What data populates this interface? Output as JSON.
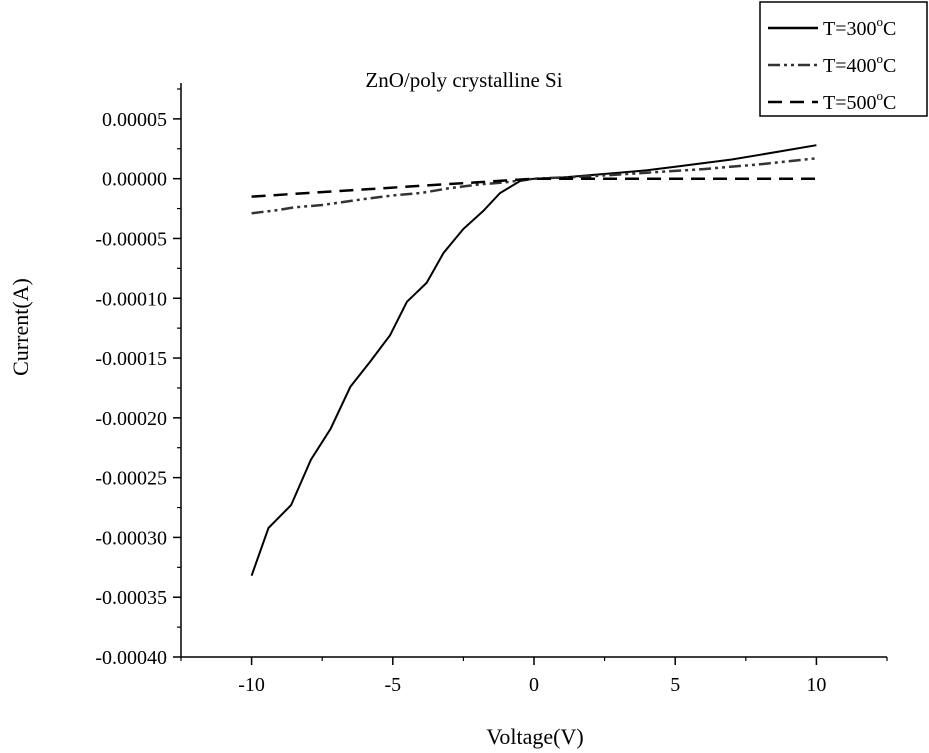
{
  "chart_data": {
    "type": "line",
    "title": "ZnO/poly crystalline Si",
    "xlabel": "Voltage(V)",
    "ylabel": "Current(A)",
    "xlim": [
      -12.5,
      12.5
    ],
    "ylim": [
      -0.0004,
      8e-05
    ],
    "x_ticks": [
      -10,
      -5,
      0,
      5,
      10
    ],
    "x_tick_labels": [
      "-10",
      "-5",
      "0",
      "5",
      "10"
    ],
    "y_ticks": [
      5e-05,
      0,
      -5e-05,
      -0.0001,
      -0.00015,
      -0.0002,
      -0.00025,
      -0.0003,
      -0.00035,
      -0.0004
    ],
    "y_tick_labels": [
      "0.00005",
      "0.00000",
      "-0.00005",
      "-0.00010",
      "-0.00015",
      "-0.00020",
      "-0.00025",
      "-0.00030",
      "-0.00035",
      "-0.00040"
    ],
    "grid": false,
    "legend_position": "top-right",
    "series": [
      {
        "name": "T=300",
        "name_sup": "o",
        "name_suffix": "C",
        "line_style": "solid",
        "color": "#000000",
        "x": [
          -10,
          -9.4,
          -8.6,
          -7.9,
          -7.2,
          -6.5,
          -5.8,
          -5.1,
          -4.5,
          -3.8,
          -3.2,
          -2.5,
          -1.8,
          -1.2,
          -0.5,
          0,
          1,
          2,
          3,
          4,
          5,
          6,
          7,
          8,
          9,
          10
        ],
        "y": [
          -0.000332,
          -0.000292,
          -0.000273,
          -0.000235,
          -0.000209,
          -0.000174,
          -0.000153,
          -0.000131,
          -0.000103,
          -8.7e-05,
          -6.2e-05,
          -4.2e-05,
          -2.7e-05,
          -1.2e-05,
          -2e-06,
          0,
          1e-06,
          3e-06,
          5e-06,
          7e-06,
          1e-05,
          1.3e-05,
          1.6e-05,
          2e-05,
          2.4e-05,
          2.8e-05
        ]
      },
      {
        "name": "T=400",
        "name_sup": "o",
        "name_suffix": "C",
        "line_style": "dash-dot-dot",
        "color": "#333333",
        "x": [
          -10,
          -9,
          -8.5,
          -7.5,
          -6,
          -5,
          -4,
          -3,
          -2,
          -1,
          0,
          2,
          4,
          6,
          8,
          10
        ],
        "y": [
          -2.9e-05,
          -2.6e-05,
          -2.4e-05,
          -2.2e-05,
          -1.7e-05,
          -1.4e-05,
          -1.2e-05,
          -8e-06,
          -5e-06,
          -3e-06,
          0,
          2e-06,
          5e-06,
          8e-06,
          1.2e-05,
          1.7e-05
        ]
      },
      {
        "name": "T=500",
        "name_sup": "o",
        "name_suffix": "C",
        "line_style": "dashed",
        "color": "#000000",
        "x": [
          -10,
          -8,
          -6,
          -4,
          -2,
          0,
          2,
          4,
          6,
          8,
          10
        ],
        "y": [
          -1.5e-05,
          -1.2e-05,
          -9e-06,
          -6e-06,
          -3e-06,
          0,
          0,
          0,
          0,
          0,
          0
        ]
      }
    ]
  }
}
